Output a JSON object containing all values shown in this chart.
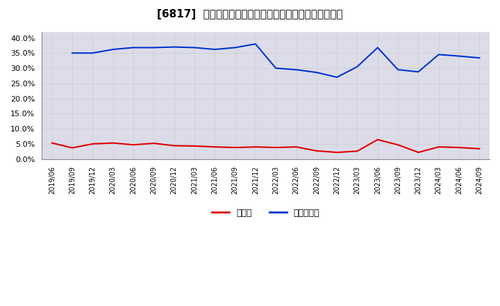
{
  "title": "[6817]  現預金、有利子負債の総資産に対する比率の推移",
  "x_labels": [
    "2019/06",
    "2019/09",
    "2019/12",
    "2020/03",
    "2020/06",
    "2020/09",
    "2020/12",
    "2021/03",
    "2021/06",
    "2021/09",
    "2021/12",
    "2022/03",
    "2022/06",
    "2022/09",
    "2022/12",
    "2023/03",
    "2023/06",
    "2023/09",
    "2023/12",
    "2024/03",
    "2024/06",
    "2024/09"
  ],
  "cash": [
    0.053,
    0.037,
    0.05,
    0.053,
    0.047,
    0.052,
    0.044,
    0.043,
    0.04,
    0.038,
    0.04,
    0.038,
    0.04,
    0.027,
    0.022,
    0.026,
    0.064,
    0.047,
    0.022,
    0.04,
    0.038,
    0.034
  ],
  "debt": [
    null,
    0.35,
    0.35,
    0.362,
    0.368,
    0.368,
    0.37,
    0.368,
    0.362,
    0.368,
    0.38,
    0.3,
    0.295,
    0.286,
    0.27,
    0.305,
    0.368,
    0.295,
    0.288,
    0.345,
    0.34,
    0.334
  ],
  "cash_color": "#dd0000",
  "debt_color": "#0033cc",
  "bg_color": "#ffffff",
  "plot_bg_color": "#dcdce8",
  "grid_color": "#aaaaaa",
  "legend_cash": "現預金",
  "legend_debt": "有利子負債",
  "ylim": [
    0.0,
    0.42
  ],
  "yticks": [
    0.0,
    0.05,
    0.1,
    0.15,
    0.2,
    0.25,
    0.3,
    0.35,
    0.4
  ]
}
